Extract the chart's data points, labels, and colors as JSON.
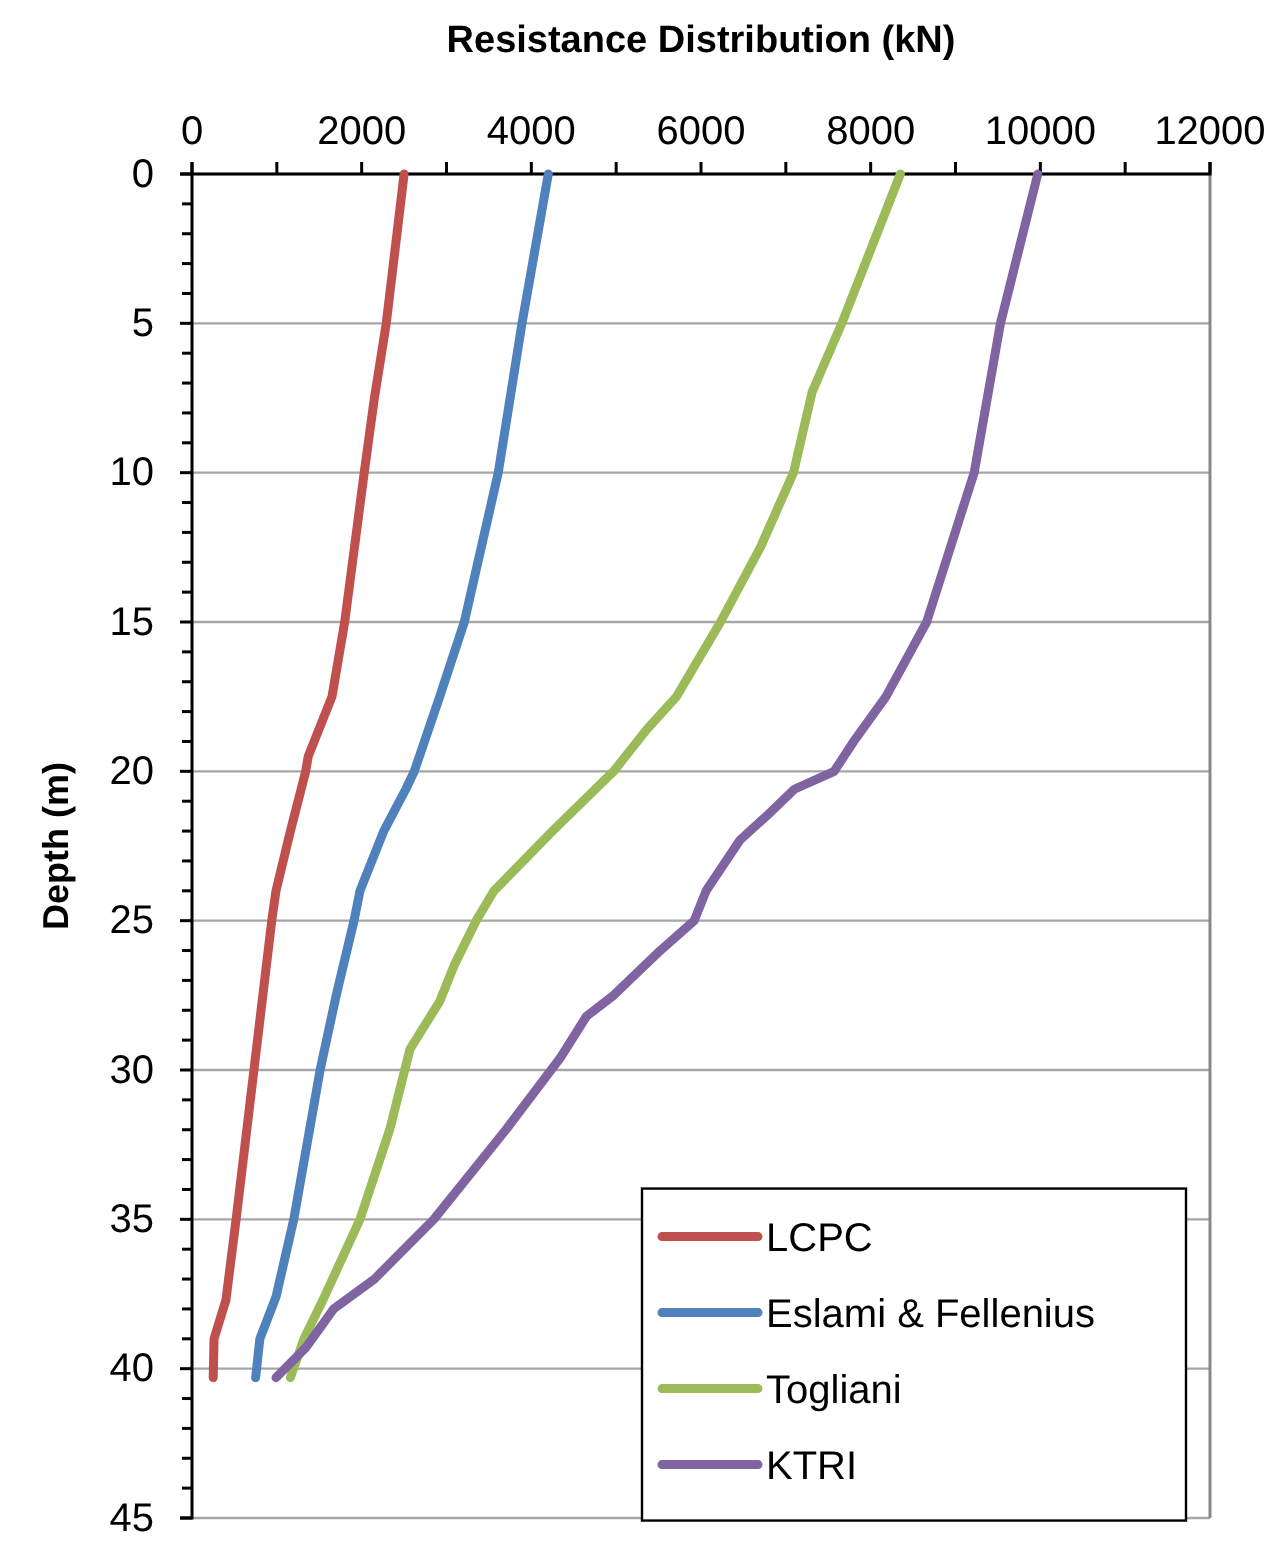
{
  "chart_data": {
    "type": "line",
    "xlabel": "Resistance Distribution  (kN)",
    "ylabel": "Depth (m)",
    "xlim": [
      0,
      12000
    ],
    "xticks": [
      0,
      {
        "value": 1000,
        "label": null
      },
      2000,
      {
        "value": 3000,
        "label": null
      },
      4000,
      {
        "value": 5000,
        "label": null
      },
      6000,
      {
        "value": 7000,
        "label": null
      },
      8000,
      {
        "value": 9000,
        "label": null
      },
      10000,
      {
        "value": 11000,
        "label": null
      },
      12000
    ],
    "ylim": [
      45,
      0
    ],
    "yticks": [
      0,
      {
        "value": 1,
        "label": null
      },
      {
        "value": 2,
        "label": null
      },
      {
        "value": 3,
        "label": null
      },
      {
        "value": 4,
        "label": null
      },
      5,
      {
        "value": 6,
        "label": null
      },
      {
        "value": 7,
        "label": null
      },
      {
        "value": 8,
        "label": null
      },
      {
        "value": 9,
        "label": null
      },
      10,
      {
        "value": 11,
        "label": null
      },
      {
        "value": 12,
        "label": null
      },
      {
        "value": 13,
        "label": null
      },
      {
        "value": 14,
        "label": null
      },
      15,
      {
        "value": 16,
        "label": null
      },
      {
        "value": 17,
        "label": null
      },
      {
        "value": 18,
        "label": null
      },
      {
        "value": 19,
        "label": null
      },
      20,
      {
        "value": 21,
        "label": null
      },
      {
        "value": 22,
        "label": null
      },
      {
        "value": 23,
        "label": null
      },
      {
        "value": 24,
        "label": null
      },
      25,
      {
        "value": 26,
        "label": null
      },
      {
        "value": 27,
        "label": null
      },
      {
        "value": 28,
        "label": null
      },
      {
        "value": 29,
        "label": null
      },
      30,
      {
        "value": 31,
        "label": null
      },
      {
        "value": 32,
        "label": null
      },
      {
        "value": 33,
        "label": null
      },
      {
        "value": 34,
        "label": null
      },
      35,
      {
        "value": 36,
        "label": null
      },
      {
        "value": 37,
        "label": null
      },
      {
        "value": 38,
        "label": null
      },
      {
        "value": 39,
        "label": null
      },
      40,
      {
        "value": 41,
        "label": null
      },
      {
        "value": 42,
        "label": null
      },
      {
        "value": 43,
        "label": null
      },
      {
        "value": 44,
        "label": null
      },
      45
    ],
    "grid": "y",
    "legend": "bottom right",
    "marker": "none",
    "line_style": "solid",
    "series": [
      {
        "name": "LCPC",
        "color": "#c0504d",
        "x": [
          2500,
          2290,
          2150,
          2030,
          1800,
          1650,
          1370,
          1340,
          1160,
          990,
          940,
          730,
          520,
          400,
          260,
          250
        ],
        "values": [
          0,
          5,
          7.5,
          10,
          15,
          17.5,
          19.5,
          20,
          22,
          24,
          25,
          30,
          35,
          37.7,
          39,
          40.3
        ]
      },
      {
        "name": "Eslami & Fellenius",
        "color": "#4f81bd",
        "x": [
          4200,
          3890,
          3610,
          3210,
          2920,
          2620,
          2520,
          2260,
          1980,
          1910,
          1700,
          1510,
          1200,
          990,
          800,
          750
        ],
        "values": [
          0,
          5,
          10,
          15,
          17.5,
          20,
          20.6,
          22,
          24,
          25,
          27.5,
          30,
          35,
          37.6,
          39,
          40.3
        ]
      },
      {
        "name": "Togliani",
        "color": "#9bbb59",
        "x": [
          8350,
          7660,
          7310,
          7090,
          6700,
          6230,
          5710,
          5360,
          4970,
          4250,
          3560,
          3350,
          3090,
          2920,
          2570,
          2330,
          1980,
          1560,
          1320,
          1160
        ],
        "values": [
          0,
          5,
          7.3,
          10,
          12.5,
          15,
          17.5,
          18.6,
          20,
          22,
          24,
          25,
          26.5,
          27.7,
          29.3,
          32,
          35,
          37.6,
          39,
          40.3
        ]
      },
      {
        "name": "KTRI",
        "color": "#8064a2",
        "x": [
          9970,
          9530,
          9220,
          8940,
          8660,
          8180,
          7800,
          7570,
          7100,
          6770,
          6460,
          6060,
          5920,
          5520,
          4970,
          4650,
          4340,
          3700,
          2850,
          2150,
          1670,
          1340,
          990
        ],
        "values": [
          0,
          5,
          10,
          12.5,
          15,
          17.5,
          19,
          20,
          20.6,
          21.5,
          22.3,
          24,
          25,
          26,
          27.5,
          28.2,
          29.6,
          32,
          35,
          37,
          38,
          39.3,
          40.3
        ]
      }
    ]
  }
}
